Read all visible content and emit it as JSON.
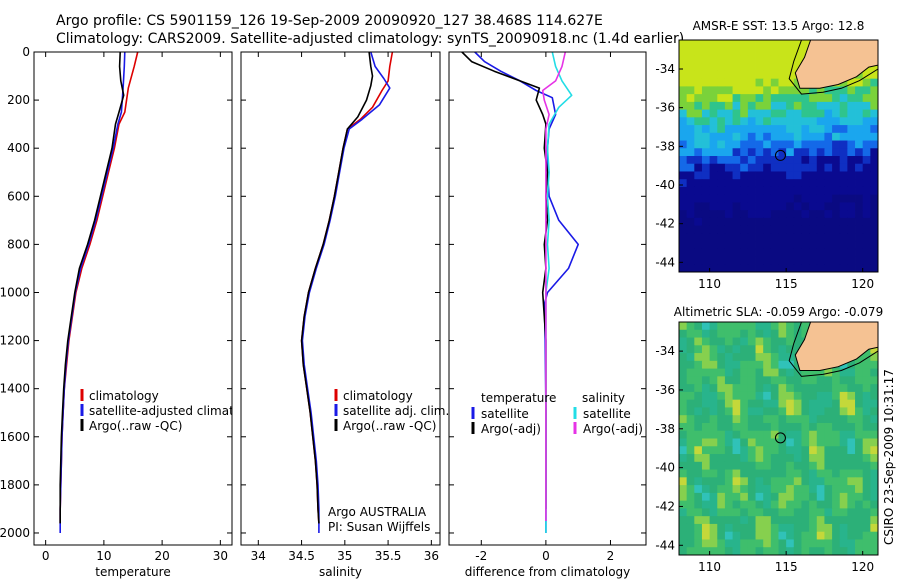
{
  "header": {
    "line1": "Argo profile: CS 5901159_126 19-Sep-2009 20090920_127 38.468S 114.627E",
    "line2": "Climatology: CARS2009. Satellite-adjusted climatology: synTS_20090918.nc (1.4d earlier)"
  },
  "colors": {
    "climatology": "#dd0000",
    "satellite": "#1a1ae6",
    "argo": "#000000",
    "salinity_satellite": "#22dde6",
    "salinity_argo": "#e633e6",
    "land": "#f5c293",
    "sst_deep": "#0a0a82"
  },
  "chart_data": [
    {
      "type": "line",
      "xlabel": "temperature",
      "ylabel": "",
      "xlim": [
        -2,
        32
      ],
      "ylim": [
        2050,
        0
      ],
      "xticks": [
        0,
        10,
        20,
        30
      ],
      "yticks": [
        0,
        200,
        400,
        600,
        800,
        1000,
        1200,
        1400,
        1600,
        1800,
        2000
      ],
      "legend": {
        "placement": "lower-right",
        "entries": [
          "climatology",
          "satellite-adjusted climatology",
          "Argo(..raw -QC)"
        ]
      },
      "series": [
        {
          "name": "climatology",
          "color": "#dd0000",
          "points": [
            [
              15.8,
              0
            ],
            [
              15.2,
              60
            ],
            [
              14.2,
              150
            ],
            [
              13.6,
              250
            ],
            [
              12.6,
              300
            ],
            [
              11.8,
              400
            ],
            [
              10.8,
              500
            ],
            [
              9.8,
              600
            ],
            [
              8.8,
              700
            ],
            [
              7.6,
              800
            ],
            [
              6.2,
              900
            ],
            [
              5.2,
              1000
            ],
            [
              4.6,
              1100
            ],
            [
              4.0,
              1200
            ],
            [
              3.6,
              1300
            ],
            [
              3.2,
              1400
            ],
            [
              3.0,
              1500
            ],
            [
              2.8,
              1600
            ],
            [
              2.7,
              1700
            ],
            [
              2.6,
              1800
            ],
            [
              2.5,
              1900
            ],
            [
              2.5,
              1960
            ]
          ]
        },
        {
          "name": "satellite-adjusted climatology",
          "color": "#1a1ae6",
          "points": [
            [
              13.6,
              0
            ],
            [
              13.5,
              60
            ],
            [
              13.3,
              150
            ],
            [
              13.0,
              250
            ],
            [
              12.4,
              300
            ],
            [
              11.6,
              400
            ],
            [
              10.6,
              500
            ],
            [
              9.6,
              600
            ],
            [
              8.6,
              700
            ],
            [
              7.4,
              800
            ],
            [
              6.0,
              900
            ],
            [
              5.1,
              1000
            ],
            [
              4.5,
              1100
            ],
            [
              3.9,
              1200
            ],
            [
              3.5,
              1300
            ],
            [
              3.2,
              1400
            ],
            [
              3.0,
              1500
            ],
            [
              2.8,
              1600
            ],
            [
              2.7,
              1700
            ],
            [
              2.6,
              1800
            ],
            [
              2.5,
              1900
            ],
            [
              2.5,
              2000
            ]
          ]
        },
        {
          "name": "Argo(..raw -QC)",
          "color": "#000000",
          "points": [
            [
              12.8,
              0
            ],
            [
              12.7,
              60
            ],
            [
              12.9,
              120
            ],
            [
              13.4,
              180
            ],
            [
              12.6,
              250
            ],
            [
              12.0,
              300
            ],
            [
              11.4,
              400
            ],
            [
              10.4,
              500
            ],
            [
              9.4,
              600
            ],
            [
              8.4,
              700
            ],
            [
              7.2,
              800
            ],
            [
              5.8,
              900
            ],
            [
              5.0,
              1000
            ],
            [
              4.4,
              1100
            ],
            [
              3.8,
              1200
            ],
            [
              3.4,
              1300
            ],
            [
              3.1,
              1400
            ],
            [
              2.9,
              1500
            ],
            [
              2.7,
              1600
            ],
            [
              2.6,
              1700
            ],
            [
              2.5,
              1800
            ],
            [
              2.5,
              1900
            ],
            [
              2.5,
              1960
            ]
          ]
        }
      ]
    },
    {
      "type": "line",
      "xlabel": "salinity",
      "ylabel": "",
      "xlim": [
        33.8,
        36.1
      ],
      "ylim": [
        2050,
        0
      ],
      "xticks": [
        34,
        34.5,
        35,
        35.5,
        36
      ],
      "yticks": [
        0,
        200,
        400,
        600,
        800,
        1000,
        1200,
        1400,
        1600,
        1800,
        2000
      ],
      "legend": {
        "placement": "lower-right",
        "entries": [
          "climatology",
          "satellite adj. clim.",
          "Argo(..raw -QC)"
        ]
      },
      "annotations": [
        "Argo AUSTRALIA",
        "PI: Susan Wijffels"
      ],
      "series": [
        {
          "name": "climatology",
          "color": "#dd0000",
          "points": [
            [
              35.55,
              0
            ],
            [
              35.52,
              60
            ],
            [
              35.5,
              120
            ],
            [
              35.43,
              160
            ],
            [
              35.32,
              230
            ],
            [
              35.18,
              280
            ],
            [
              35.03,
              320
            ],
            [
              34.98,
              400
            ],
            [
              34.93,
              500
            ],
            [
              34.88,
              600
            ],
            [
              34.82,
              700
            ],
            [
              34.75,
              800
            ],
            [
              34.66,
              900
            ],
            [
              34.58,
              1000
            ],
            [
              34.53,
              1100
            ],
            [
              34.5,
              1200
            ],
            [
              34.52,
              1300
            ],
            [
              34.56,
              1400
            ],
            [
              34.6,
              1500
            ],
            [
              34.63,
              1600
            ],
            [
              34.66,
              1700
            ],
            [
              34.68,
              1800
            ],
            [
              34.69,
              1900
            ],
            [
              34.7,
              1960
            ]
          ]
        },
        {
          "name": "satellite adj. clim.",
          "color": "#1a1ae6",
          "points": [
            [
              35.3,
              0
            ],
            [
              35.35,
              60
            ],
            [
              35.45,
              110
            ],
            [
              35.52,
              150
            ],
            [
              35.4,
              220
            ],
            [
              35.2,
              280
            ],
            [
              35.05,
              320
            ],
            [
              34.99,
              400
            ],
            [
              34.94,
              500
            ],
            [
              34.89,
              600
            ],
            [
              34.83,
              700
            ],
            [
              34.76,
              800
            ],
            [
              34.67,
              900
            ],
            [
              34.59,
              1000
            ],
            [
              34.54,
              1100
            ],
            [
              34.51,
              1200
            ],
            [
              34.53,
              1300
            ],
            [
              34.57,
              1400
            ],
            [
              34.61,
              1500
            ],
            [
              34.64,
              1600
            ],
            [
              34.67,
              1700
            ],
            [
              34.69,
              1800
            ],
            [
              34.7,
              1900
            ],
            [
              34.7,
              2000
            ]
          ]
        },
        {
          "name": "Argo(..raw -QC)",
          "color": "#000000",
          "points": [
            [
              35.28,
              0
            ],
            [
              35.3,
              60
            ],
            [
              35.32,
              100
            ],
            [
              35.3,
              140
            ],
            [
              35.25,
              200
            ],
            [
              35.15,
              270
            ],
            [
              35.03,
              320
            ],
            [
              34.98,
              400
            ],
            [
              34.93,
              500
            ],
            [
              34.88,
              600
            ],
            [
              34.82,
              700
            ],
            [
              34.75,
              800
            ],
            [
              34.66,
              900
            ],
            [
              34.58,
              1000
            ],
            [
              34.53,
              1100
            ],
            [
              34.5,
              1200
            ],
            [
              34.52,
              1300
            ],
            [
              34.56,
              1400
            ],
            [
              34.6,
              1500
            ],
            [
              34.63,
              1600
            ],
            [
              34.66,
              1700
            ],
            [
              34.68,
              1800
            ],
            [
              34.69,
              1900
            ],
            [
              34.7,
              1960
            ]
          ]
        }
      ]
    },
    {
      "type": "line",
      "xlabel": "difference from climatology",
      "ylabel": "",
      "xlim": [
        -3,
        3.1
      ],
      "ylim": [
        2050,
        0
      ],
      "xticks": [
        -2,
        0,
        2
      ],
      "yticks": [
        0,
        200,
        400,
        600,
        800,
        1000,
        1200,
        1400,
        1600,
        1800,
        2000
      ],
      "legend": {
        "placement": "lower",
        "temperature_title": "temperature",
        "salinity_title": "salinity",
        "entries": [
          "satellite",
          "Argo(-adj)",
          "satellite",
          "Argo(-adj)"
        ]
      },
      "series": [
        {
          "name": "temperature satellite",
          "color": "#1a1ae6",
          "points": [
            [
              -2.2,
              0
            ],
            [
              -1.9,
              40
            ],
            [
              -1.4,
              80
            ],
            [
              -0.8,
              120
            ],
            [
              -0.3,
              160
            ],
            [
              0.2,
              190
            ],
            [
              0.3,
              260
            ],
            [
              0.1,
              320
            ],
            [
              0.05,
              400
            ],
            [
              0.05,
              500
            ],
            [
              0.1,
              600
            ],
            [
              0.4,
              700
            ],
            [
              1.0,
              800
            ],
            [
              0.7,
              900
            ],
            [
              0.05,
              1000
            ],
            [
              -0.05,
              1050
            ],
            [
              -0.02,
              1200
            ],
            [
              0.0,
              1500
            ],
            [
              0.0,
              2000
            ]
          ]
        },
        {
          "name": "temperature Argo(-adj)",
          "color": "#000000",
          "points": [
            [
              -2.6,
              0
            ],
            [
              -2.3,
              40
            ],
            [
              -1.6,
              80
            ],
            [
              -0.8,
              120
            ],
            [
              -0.2,
              150
            ],
            [
              -0.3,
              200
            ],
            [
              -0.1,
              260
            ],
            [
              0.0,
              300
            ],
            [
              -0.05,
              400
            ],
            [
              0.05,
              500
            ],
            [
              0.0,
              600
            ],
            [
              0.05,
              700
            ],
            [
              -0.05,
              800
            ],
            [
              0.0,
              900
            ],
            [
              -0.1,
              1000
            ],
            [
              -0.05,
              1100
            ],
            [
              0.0,
              1200
            ],
            [
              0.0,
              1600
            ],
            [
              0.0,
              1900
            ]
          ]
        },
        {
          "name": "salinity satellite",
          "color": "#22dde6",
          "points": [
            [
              0.2,
              0
            ],
            [
              0.3,
              60
            ],
            [
              0.5,
              120
            ],
            [
              0.8,
              180
            ],
            [
              0.4,
              230
            ],
            [
              0.1,
              300
            ],
            [
              0.05,
              400
            ],
            [
              0.1,
              500
            ],
            [
              0.05,
              600
            ],
            [
              0.1,
              700
            ],
            [
              0.05,
              800
            ],
            [
              0.1,
              900
            ],
            [
              0.0,
              1000
            ],
            [
              0.0,
              1500
            ],
            [
              0.0,
              2000
            ]
          ]
        },
        {
          "name": "salinity Argo(-adj)",
          "color": "#e633e6",
          "points": [
            [
              0.6,
              0
            ],
            [
              0.5,
              60
            ],
            [
              0.3,
              120
            ],
            [
              -0.1,
              160
            ],
            [
              -0.05,
              200
            ],
            [
              0.1,
              260
            ],
            [
              0.0,
              320
            ],
            [
              0.0,
              500
            ],
            [
              0.0,
              1000
            ],
            [
              0.0,
              1500
            ],
            [
              0.0,
              1950
            ]
          ]
        }
      ]
    },
    {
      "type": "heatmap",
      "title": "AMSR-E SST: 13.5 Argo: 12.8",
      "xticks": [
        110,
        115,
        120
      ],
      "yticks": [
        -34,
        -36,
        -38,
        -40,
        -42,
        -44
      ],
      "xlim": [
        108,
        121
      ],
      "ylim": [
        -44.5,
        -32.5
      ],
      "marker": [
        114.627,
        -38.468
      ]
    },
    {
      "type": "heatmap",
      "title": "Altimetric SLA: -0.059 Argo: -0.079",
      "xticks": [
        110,
        115,
        120
      ],
      "yticks": [
        -34,
        -36,
        -38,
        -40,
        -42,
        -44
      ],
      "xlim": [
        108,
        121
      ],
      "ylim": [
        -44.5,
        -32.5
      ],
      "marker": [
        114.627,
        -38.468
      ]
    }
  ],
  "side_label": "CSIRO 23-Sep-2009 10:31:17"
}
